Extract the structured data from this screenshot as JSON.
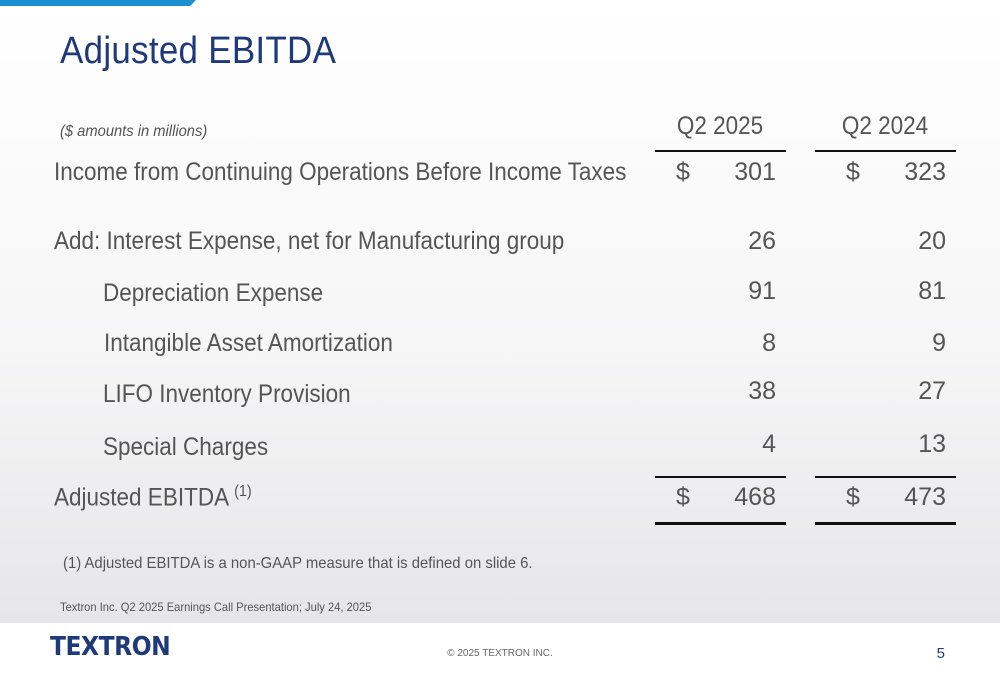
{
  "title": "Adjusted EBITDA",
  "units_note": "($ amounts in millions)",
  "columns": [
    "Q2 2025",
    "Q2 2024"
  ],
  "rows": [
    {
      "label": "Income from Continuing Operations Before Income Taxes",
      "cur": "$",
      "v1": "301",
      "v2": "323"
    },
    {
      "label": "Add: Interest Expense, net for Manufacturing group",
      "v1": "26",
      "v2": "20"
    },
    {
      "label": "Depreciation Expense",
      "v1": "91",
      "v2": "81"
    },
    {
      "label": "Intangible Asset Amortization",
      "v1": "8",
      "v2": "9"
    },
    {
      "label": "LIFO Inventory Provision",
      "v1": "38",
      "v2": "27"
    },
    {
      "label": "Special Charges",
      "v1": "4",
      "v2": "13"
    }
  ],
  "total": {
    "label": "Adjusted EBITDA",
    "sup": "(1)",
    "cur": "$",
    "v1": "468",
    "v2": "473"
  },
  "footnote": "(1) Adjusted EBITDA is a non-GAAP measure that is defined on slide 6.",
  "source": "Textron Inc. Q2 2025 Earnings Call Presentation; July 24, 2025",
  "logo_text": "TEXTRON",
  "copyright": "© 2025 TEXTRON INC.",
  "page_number": "5",
  "colors": {
    "title": "#1f3a7a",
    "accent": "#1d8fd0",
    "text": "#555555"
  }
}
